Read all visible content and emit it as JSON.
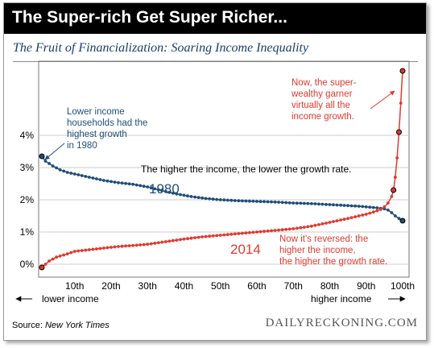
{
  "header": {
    "title": "The Super-rich Get Super Richer...",
    "subtitle": "The Fruit of Financialization: Soaring Income Inequality"
  },
  "footer": {
    "source_label": "Source:",
    "source_name": "New York Times",
    "brand": "DAILYRECKONING.COM"
  },
  "colors": {
    "series_1980": "#1f4e79",
    "series_2014": "#e03a2f",
    "grid": "#cccccc",
    "banner": "#000000"
  },
  "chart_data": {
    "type": "line",
    "title": "The Fruit of Financialization: Soaring Income Inequality",
    "xlabel_left": "lower income",
    "xlabel_right": "higher income",
    "x_ticks": [
      "10th",
      "20th",
      "30th",
      "40th",
      "50th",
      "60th",
      "70th",
      "80th",
      "90th",
      "100th"
    ],
    "y_ticks": [
      "0%",
      "1%",
      "2%",
      "3%",
      "4%"
    ],
    "xlim": [
      1,
      100
    ],
    "ylim": [
      -0.3,
      6.2
    ],
    "grid": "horizontal",
    "series": [
      {
        "name": "1980",
        "color": "#1f4e79",
        "points": [
          [
            1,
            3.35
          ],
          [
            2,
            3.2
          ],
          [
            4,
            3.05
          ],
          [
            6,
            2.93
          ],
          [
            8,
            2.85
          ],
          [
            10,
            2.8
          ],
          [
            14,
            2.7
          ],
          [
            18,
            2.6
          ],
          [
            22,
            2.53
          ],
          [
            26,
            2.48
          ],
          [
            30,
            2.4
          ],
          [
            34,
            2.28
          ],
          [
            38,
            2.18
          ],
          [
            42,
            2.1
          ],
          [
            46,
            2.04
          ],
          [
            50,
            2.0
          ],
          [
            55,
            1.97
          ],
          [
            60,
            1.95
          ],
          [
            65,
            1.93
          ],
          [
            70,
            1.9
          ],
          [
            75,
            1.88
          ],
          [
            80,
            1.85
          ],
          [
            85,
            1.82
          ],
          [
            88,
            1.8
          ],
          [
            90,
            1.78
          ],
          [
            93,
            1.75
          ],
          [
            95,
            1.72
          ],
          [
            96,
            1.68
          ],
          [
            97,
            1.6
          ],
          [
            98,
            1.5
          ],
          [
            99,
            1.42
          ],
          [
            100,
            1.35
          ]
        ]
      },
      {
        "name": "2014",
        "color": "#e03a2f",
        "points": [
          [
            1,
            -0.1
          ],
          [
            2,
            0.0
          ],
          [
            3,
            0.1
          ],
          [
            5,
            0.22
          ],
          [
            8,
            0.32
          ],
          [
            10,
            0.4
          ],
          [
            14,
            0.45
          ],
          [
            18,
            0.5
          ],
          [
            22,
            0.55
          ],
          [
            26,
            0.58
          ],
          [
            30,
            0.62
          ],
          [
            35,
            0.7
          ],
          [
            40,
            0.78
          ],
          [
            45,
            0.85
          ],
          [
            50,
            0.9
          ],
          [
            55,
            0.95
          ],
          [
            60,
            1.0
          ],
          [
            65,
            1.05
          ],
          [
            70,
            1.1
          ],
          [
            75,
            1.18
          ],
          [
            80,
            1.3
          ],
          [
            85,
            1.42
          ],
          [
            88,
            1.5
          ],
          [
            90,
            1.55
          ],
          [
            92,
            1.62
          ],
          [
            94,
            1.7
          ],
          [
            95,
            1.78
          ],
          [
            96,
            1.9
          ],
          [
            97,
            2.1
          ],
          [
            97.5,
            2.3
          ],
          [
            98,
            2.7
          ],
          [
            98.5,
            3.3
          ],
          [
            99,
            4.1
          ],
          [
            99.5,
            5.0
          ],
          [
            100,
            6.0
          ]
        ]
      }
    ],
    "annotations": {
      "left_note": [
        "Lower income",
        "households had the",
        "highest growth",
        "in 1980"
      ],
      "middle_note": "The higher the income, the lower the growth rate.",
      "top_right_note": [
        "Now, the super-",
        "wealthy garner",
        "virtually all the",
        "income growth."
      ],
      "bottom_right_note": [
        "Now it's reversed: the",
        "higher the income,",
        "the higher the growth rate."
      ],
      "series_label_1980": "1980",
      "series_label_2014": "2014"
    }
  }
}
